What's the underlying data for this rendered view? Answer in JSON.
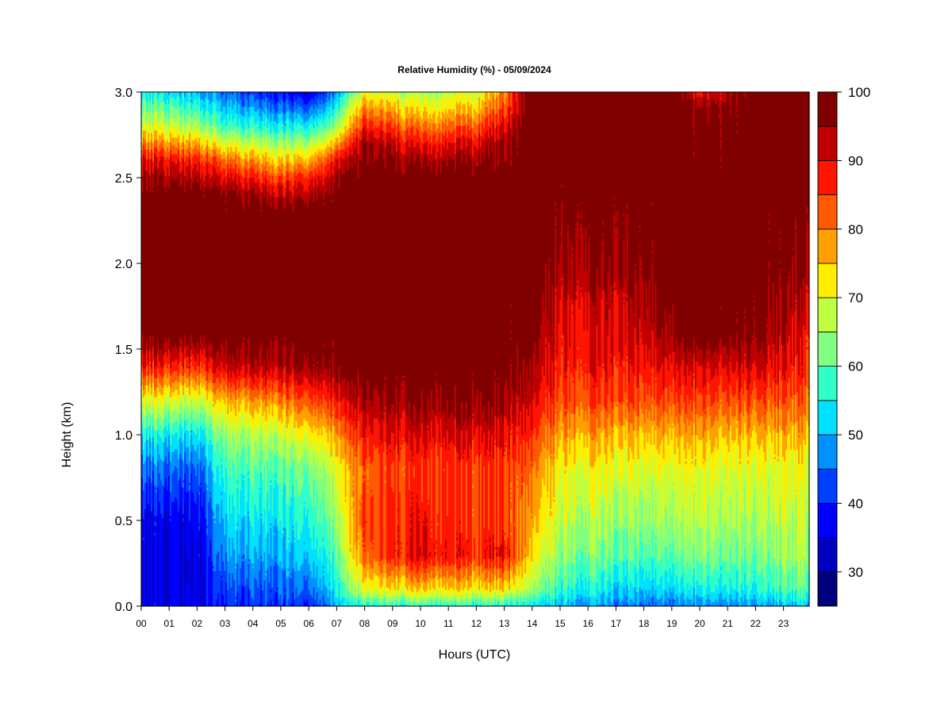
{
  "chart_data": {
    "type": "heatmap",
    "title": "Relative Humidity (%) - 05/09/2024",
    "xlabel": "Hours (UTC)",
    "ylabel": "Height (km)",
    "x_tick_labels": [
      "00",
      "01",
      "02",
      "03",
      "04",
      "05",
      "06",
      "07",
      "08",
      "09",
      "10",
      "11",
      "12",
      "13",
      "14",
      "15",
      "16",
      "17",
      "18",
      "19",
      "20",
      "21",
      "22",
      "23"
    ],
    "x_range_hours": [
      0,
      24
    ],
    "y_ticks": [
      0.0,
      0.5,
      1.0,
      1.5,
      2.0,
      2.5,
      3.0
    ],
    "y_tick_labels": [
      "0.0",
      "0.5",
      "1.0",
      "1.5",
      "2.0",
      "2.5",
      "3.0"
    ],
    "ylim": [
      0,
      3
    ],
    "colorbar": {
      "range": [
        25,
        100
      ],
      "step": 5,
      "tick_values": [
        30,
        40,
        50,
        60,
        70,
        80,
        90,
        100
      ],
      "tick_labels": [
        "30",
        "40",
        "50",
        "60",
        "70",
        "80",
        "90",
        "100"
      ],
      "colors": [
        "#00007f",
        "#0000c0",
        "#0000ff",
        "#0040ff",
        "#0090ff",
        "#00e0ff",
        "#30ffc8",
        "#80ff80",
        "#c0ff40",
        "#ffee00",
        "#ffa000",
        "#ff5a00",
        "#ff1500",
        "#c00000",
        "#800000"
      ]
    },
    "rh_profiles": [
      {
        "hour": 0,
        "heights": [
          0.0,
          0.2,
          0.5,
          0.8,
          1.0,
          1.2,
          1.4,
          1.6,
          2.0,
          2.4,
          2.6,
          2.8,
          3.0
        ],
        "rh": [
          36,
          35,
          36,
          45,
          55,
          70,
          88,
          100,
          100,
          100,
          90,
          70,
          55
        ]
      },
      {
        "hour": 2,
        "heights": [
          0.0,
          0.2,
          0.5,
          0.8,
          1.0,
          1.2,
          1.4,
          1.6,
          2.0,
          2.4,
          2.6,
          2.8,
          3.0
        ],
        "rh": [
          36,
          35,
          36,
          44,
          53,
          68,
          86,
          100,
          100,
          100,
          88,
          66,
          50
        ]
      },
      {
        "hour": 3,
        "heights": [
          0.0,
          0.1,
          0.3,
          0.5,
          0.8,
          1.0,
          1.2,
          1.4,
          1.6,
          2.0,
          2.4,
          2.6,
          2.8,
          3.0
        ],
        "rh": [
          40,
          42,
          48,
          52,
          58,
          64,
          76,
          92,
          100,
          100,
          98,
          82,
          58,
          45
        ]
      },
      {
        "hour": 5,
        "heights": [
          0.0,
          0.1,
          0.3,
          0.5,
          0.8,
          1.0,
          1.2,
          1.4,
          1.6,
          2.0,
          2.3,
          2.5,
          2.8,
          3.0
        ],
        "rh": [
          42,
          44,
          50,
          54,
          60,
          68,
          80,
          94,
          100,
          100,
          100,
          85,
          55,
          38
        ]
      },
      {
        "hour": 6,
        "heights": [
          0.0,
          0.1,
          0.3,
          0.5,
          0.8,
          1.0,
          1.2,
          1.4,
          1.6,
          2.0,
          2.3,
          2.5,
          2.8,
          3.0
        ],
        "rh": [
          40,
          45,
          52,
          56,
          62,
          72,
          84,
          96,
          100,
          100,
          100,
          88,
          55,
          35
        ]
      },
      {
        "hour": 7,
        "heights": [
          0.0,
          0.1,
          0.3,
          0.5,
          0.8,
          1.0,
          1.2,
          1.4,
          1.6,
          2.0,
          2.4,
          2.6,
          2.8,
          3.0
        ],
        "rh": [
          50,
          55,
          60,
          65,
          70,
          78,
          88,
          98,
          100,
          100,
          100,
          90,
          65,
          48
        ]
      },
      {
        "hour": 8,
        "heights": [
          0.0,
          0.1,
          0.3,
          0.5,
          0.8,
          1.0,
          1.2,
          1.4,
          2.0,
          2.5,
          2.7,
          2.9,
          3.0
        ],
        "rh": [
          55,
          70,
          82,
          84,
          82,
          88,
          94,
          100,
          100,
          100,
          95,
          80,
          70
        ]
      },
      {
        "hour": 10,
        "heights": [
          0.0,
          0.1,
          0.3,
          0.5,
          0.8,
          1.0,
          1.2,
          1.4,
          2.0,
          2.5,
          2.7,
          2.9,
          3.0
        ],
        "rh": [
          56,
          74,
          90,
          88,
          85,
          90,
          96,
          100,
          100,
          100,
          88,
          72,
          65
        ]
      },
      {
        "hour": 12,
        "heights": [
          0.0,
          0.1,
          0.3,
          0.5,
          0.8,
          1.0,
          1.2,
          1.4,
          2.0,
          2.5,
          2.7,
          2.9,
          3.0
        ],
        "rh": [
          55,
          72,
          86,
          84,
          84,
          90,
          96,
          100,
          100,
          100,
          90,
          75,
          68
        ]
      },
      {
        "hour": 13,
        "heights": [
          0.0,
          0.1,
          0.3,
          0.5,
          0.8,
          1.0,
          1.2,
          1.4,
          2.0,
          2.5,
          2.7,
          2.9,
          3.0
        ],
        "rh": [
          55,
          74,
          90,
          86,
          86,
          90,
          96,
          100,
          100,
          100,
          96,
          85,
          80
        ]
      },
      {
        "hour": 14,
        "heights": [
          0.0,
          0.1,
          0.3,
          0.5,
          0.8,
          1.0,
          1.2,
          1.4,
          1.6,
          2.0,
          2.5,
          3.0
        ],
        "rh": [
          52,
          64,
          72,
          76,
          80,
          85,
          90,
          94,
          97,
          100,
          100,
          100
        ]
      },
      {
        "hour": 15,
        "heights": [
          0.0,
          0.1,
          0.3,
          0.5,
          0.8,
          1.0,
          1.2,
          1.4,
          1.6,
          1.8,
          2.0,
          2.5,
          3.0
        ],
        "rh": [
          50,
          58,
          64,
          68,
          72,
          78,
          84,
          88,
          90,
          92,
          96,
          100,
          100
        ]
      },
      {
        "hour": 17,
        "heights": [
          0.0,
          0.1,
          0.3,
          0.5,
          0.8,
          1.0,
          1.2,
          1.4,
          1.6,
          1.8,
          2.0,
          2.5,
          3.0
        ],
        "rh": [
          46,
          52,
          60,
          64,
          70,
          76,
          84,
          88,
          90,
          92,
          96,
          100,
          100
        ]
      },
      {
        "hour": 19,
        "heights": [
          0.0,
          0.1,
          0.3,
          0.5,
          0.8,
          1.0,
          1.2,
          1.4,
          1.6,
          2.0,
          2.5,
          3.0
        ],
        "rh": [
          45,
          52,
          60,
          65,
          70,
          76,
          84,
          90,
          96,
          100,
          100,
          100
        ]
      },
      {
        "hour": 20,
        "heights": [
          0.0,
          0.1,
          0.3,
          0.5,
          0.8,
          1.0,
          1.2,
          1.4,
          1.6,
          2.0,
          2.5,
          2.9,
          3.0
        ],
        "rh": [
          46,
          54,
          62,
          66,
          70,
          76,
          84,
          90,
          100,
          100,
          100,
          96,
          88
        ]
      },
      {
        "hour": 22,
        "heights": [
          0.0,
          0.1,
          0.3,
          0.5,
          0.8,
          1.0,
          1.2,
          1.4,
          1.6,
          2.0,
          2.5,
          3.0
        ],
        "rh": [
          48,
          56,
          62,
          66,
          70,
          76,
          84,
          92,
          98,
          100,
          100,
          100
        ]
      },
      {
        "hour": 24,
        "heights": [
          0.0,
          0.1,
          0.3,
          0.5,
          0.8,
          1.0,
          1.2,
          1.4,
          1.6,
          1.8,
          2.0,
          2.5,
          3.0
        ],
        "rh": [
          52,
          60,
          66,
          68,
          70,
          76,
          82,
          86,
          88,
          92,
          96,
          100,
          100
        ]
      }
    ]
  }
}
